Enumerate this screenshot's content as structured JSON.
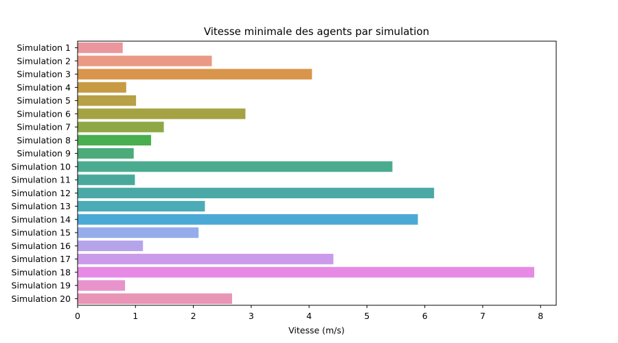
{
  "chart_data": {
    "type": "bar",
    "orientation": "horizontal",
    "title": "Vitesse minimale des agents par simulation",
    "xlabel": "Vitesse (m/s)",
    "ylabel": "",
    "xlim": [
      0,
      8.27
    ],
    "xticks": [
      "0",
      "1",
      "2",
      "3",
      "4",
      "5",
      "6",
      "7",
      "8"
    ],
    "grid": false,
    "categories": [
      "Simulation 1",
      "Simulation 2",
      "Simulation 3",
      "Simulation 4",
      "Simulation 5",
      "Simulation 6",
      "Simulation 7",
      "Simulation 8",
      "Simulation 9",
      "Simulation 10",
      "Simulation 11",
      "Simulation 12",
      "Simulation 13",
      "Simulation 14",
      "Simulation 15",
      "Simulation 16",
      "Simulation 17",
      "Simulation 18",
      "Simulation 19",
      "Simulation 20"
    ],
    "values": [
      0.78,
      2.32,
      4.05,
      0.84,
      1.01,
      2.9,
      1.49,
      1.27,
      0.97,
      5.44,
      0.99,
      6.16,
      2.2,
      5.88,
      2.09,
      1.13,
      4.42,
      7.89,
      0.82,
      2.67
    ],
    "colors": [
      "#ea969e",
      "#ea9a84",
      "#d8954b",
      "#c69b43",
      "#b7a045",
      "#a5a244",
      "#8ea845",
      "#49ae4f",
      "#4bac79",
      "#4aab8f",
      "#48a99b",
      "#4aa9a6",
      "#4bacb7",
      "#4ba9d6",
      "#96acea",
      "#b5a4ea",
      "#cc9aea",
      "#e68ae6",
      "#e893cc",
      "#e895b6"
    ]
  }
}
